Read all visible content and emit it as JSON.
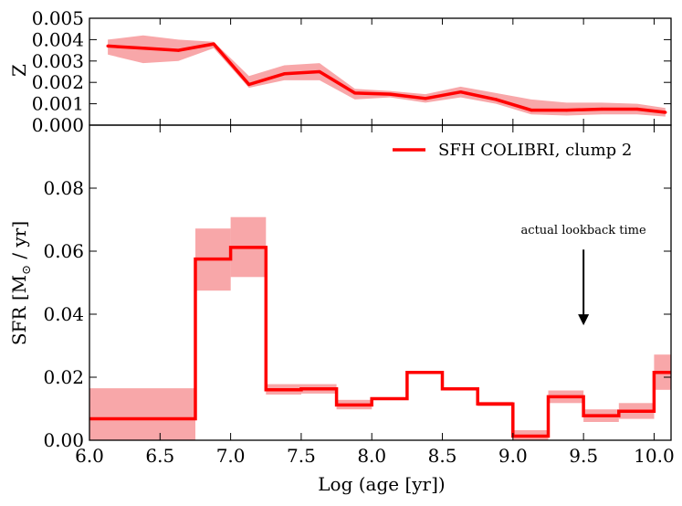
{
  "chart_data": [
    {
      "type": "line",
      "panel": "metallicity",
      "ylabel": "Z",
      "xlim": [
        6.0,
        10.12
      ],
      "ylim": [
        0.0,
        0.005
      ],
      "yticks": [
        0.0,
        0.001,
        0.002,
        0.003,
        0.004,
        0.005
      ],
      "ytick_labels": [
        "0.000",
        "0.001",
        "0.002",
        "0.003",
        "0.004",
        "0.005"
      ],
      "series": [
        {
          "name": "Z",
          "x": [
            6.13,
            6.38,
            6.63,
            6.88,
            7.13,
            7.38,
            7.63,
            7.88,
            8.13,
            8.38,
            8.63,
            8.88,
            9.13,
            9.38,
            9.63,
            9.88,
            10.08
          ],
          "values": [
            0.0037,
            0.0036,
            0.0035,
            0.0038,
            0.0019,
            0.0024,
            0.0025,
            0.0015,
            0.00145,
            0.00125,
            0.00155,
            0.0012,
            0.0007,
            0.0007,
            0.00075,
            0.00075,
            0.0006
          ],
          "upper": [
            0.004,
            0.0042,
            0.004,
            0.0039,
            0.0023,
            0.0028,
            0.0029,
            0.0017,
            0.0016,
            0.00145,
            0.0018,
            0.0015,
            0.0012,
            0.00105,
            0.00105,
            0.001,
            0.0008
          ],
          "lower": [
            0.0033,
            0.0029,
            0.003,
            0.0036,
            0.00175,
            0.0021,
            0.0021,
            0.0012,
            0.0013,
            0.00105,
            0.0013,
            0.001,
            0.0005,
            0.00045,
            0.0005,
            0.0005,
            0.0004
          ]
        }
      ]
    },
    {
      "type": "step",
      "panel": "star-formation-rate",
      "xlabel": "Log (age [yr])",
      "ylabel": "SFR [M",
      "ylabel_sub": "⊙",
      "ylabel_tail": " / yr]",
      "xlim": [
        6.0,
        10.12
      ],
      "ylim": [
        0.0,
        0.1
      ],
      "xticks": [
        6.0,
        6.5,
        7.0,
        7.5,
        8.0,
        8.5,
        9.0,
        9.5,
        10.0
      ],
      "xtick_labels": [
        "6.0",
        "6.5",
        "7.0",
        "7.5",
        "8.0",
        "8.5",
        "9.0",
        "9.5",
        "10.0"
      ],
      "yticks": [
        0.0,
        0.02,
        0.04,
        0.06,
        0.08
      ],
      "ytick_labels": [
        "0.00",
        "0.02",
        "0.04",
        "0.06",
        "0.08"
      ],
      "bins": [
        {
          "x0": 6.0,
          "x1": 6.75,
          "value": 0.0068,
          "lo": 0.0,
          "hi": 0.0165
        },
        {
          "x0": 6.75,
          "x1": 7.0,
          "value": 0.0575,
          "lo": 0.0475,
          "hi": 0.0672
        },
        {
          "x0": 7.0,
          "x1": 7.25,
          "value": 0.0612,
          "lo": 0.0518,
          "hi": 0.0708
        },
        {
          "x0": 7.25,
          "x1": 7.5,
          "value": 0.016,
          "lo": 0.0145,
          "hi": 0.0178
        },
        {
          "x0": 7.5,
          "x1": 7.75,
          "value": 0.0163,
          "lo": 0.0148,
          "hi": 0.0178
        },
        {
          "x0": 7.75,
          "x1": 8.0,
          "value": 0.0112,
          "lo": 0.0098,
          "hi": 0.0128
        },
        {
          "x0": 8.0,
          "x1": 8.25,
          "value": 0.0132,
          "lo": 0.0132,
          "hi": 0.0132
        },
        {
          "x0": 8.25,
          "x1": 8.5,
          "value": 0.0215,
          "lo": 0.0215,
          "hi": 0.0215
        },
        {
          "x0": 8.5,
          "x1": 8.75,
          "value": 0.0163,
          "lo": 0.0163,
          "hi": 0.0163
        },
        {
          "x0": 8.75,
          "x1": 9.0,
          "value": 0.0115,
          "lo": 0.0108,
          "hi": 0.0122
        },
        {
          "x0": 9.0,
          "x1": 9.25,
          "value": 0.0013,
          "lo": 0.0,
          "hi": 0.0032
        },
        {
          "x0": 9.25,
          "x1": 9.5,
          "value": 0.0138,
          "lo": 0.0118,
          "hi": 0.0158
        },
        {
          "x0": 9.5,
          "x1": 9.75,
          "value": 0.0078,
          "lo": 0.0058,
          "hi": 0.0098
        },
        {
          "x0": 9.75,
          "x1": 10.0,
          "value": 0.0092,
          "lo": 0.0068,
          "hi": 0.0118
        },
        {
          "x0": 10.0,
          "x1": 10.12,
          "value": 0.0215,
          "lo": 0.016,
          "hi": 0.0272
        }
      ],
      "legend": {
        "label": "SFH COLIBRI, clump 2",
        "placement": "top-right"
      },
      "annotation": {
        "text": "actual lookback time",
        "x": 9.5,
        "y_text": 0.0655,
        "arrow_from": 0.0605,
        "arrow_to": 0.0365
      }
    }
  ],
  "colors": {
    "line": "#ff0000",
    "band": "#f8a7a9",
    "axes": "#000000"
  }
}
